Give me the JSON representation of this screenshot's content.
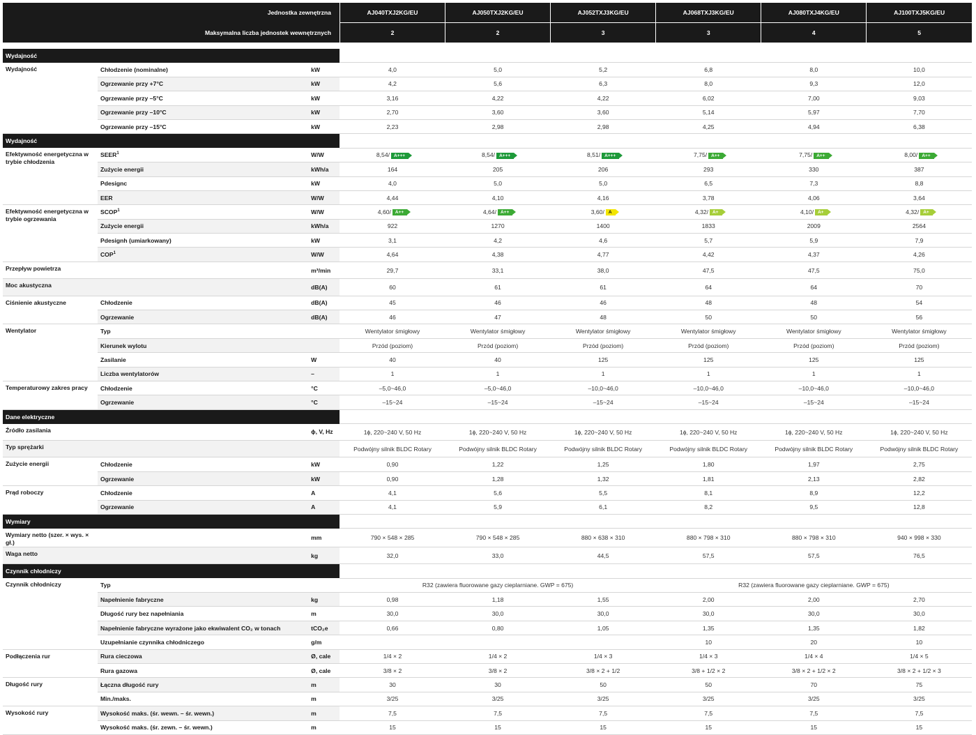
{
  "header": {
    "outdoor_label": "Jednostka zewnętrzna",
    "models": [
      "AJ040TXJ2KG/EU",
      "AJ050TXJ2KG/EU",
      "AJ052TXJ3KG/EU",
      "AJ068TXJ3KG/EU",
      "AJ080TXJ4KG/EU",
      "AJ100TXJ5KG/EU"
    ],
    "max_indoor_label": "Maksymalna liczba jednostek wewnętrznych",
    "max_indoor": [
      "2",
      "2",
      "3",
      "3",
      "4",
      "5"
    ]
  },
  "sections": [
    {
      "title": "Wydajność",
      "rows": [
        {
          "group": "Wydajność",
          "param": "Chłodzenie (nominalne)",
          "unit": "kW",
          "values": [
            "4,0",
            "5,0",
            "5,2",
            "6,8",
            "8,0",
            "10,0"
          ]
        },
        {
          "param": "Ogrzewanie przy +7°C",
          "unit": "kW",
          "values": [
            "4,2",
            "5,6",
            "6,3",
            "8,0",
            "9,3",
            "12,0"
          ]
        },
        {
          "param": "Ogrzewanie przy –5°C",
          "unit": "kW",
          "values": [
            "3,16",
            "4,22",
            "4,22",
            "6,02",
            "7,00",
            "9,03"
          ]
        },
        {
          "param": "Ogrzewanie przy –10°C",
          "unit": "kW",
          "values": [
            "2,70",
            "3,60",
            "3,60",
            "5,14",
            "5,97",
            "7,70"
          ]
        },
        {
          "param": "Ogrzewanie przy –15°C",
          "unit": "kW",
          "values": [
            "2,23",
            "2,98",
            "2,98",
            "4,25",
            "4,94",
            "6,38"
          ]
        }
      ]
    },
    {
      "title": "Wydajność",
      "rows": [
        {
          "group": "Efektywność energetyczna w trybie chłodzenia",
          "param": "SEER",
          "sup": "1",
          "unit": "W/W",
          "values": [
            "8,54/",
            "8,54/",
            "8,51/",
            "7,75/",
            "7,75/",
            "8,00/"
          ],
          "badges": [
            [
              "A+++",
              "dg"
            ],
            [
              "A+++",
              "dg"
            ],
            [
              "A+++",
              "dg"
            ],
            [
              "A++",
              "g"
            ],
            [
              "A++",
              "g"
            ],
            [
              "A++",
              "g"
            ]
          ]
        },
        {
          "param": "Zużycie energii",
          "unit": "kWh/a",
          "values": [
            "164",
            "205",
            "206",
            "293",
            "330",
            "387"
          ]
        },
        {
          "param": "Pdesignc",
          "unit": "kW",
          "values": [
            "4,0",
            "5,0",
            "5,0",
            "6,5",
            "7,3",
            "8,8"
          ]
        },
        {
          "param": "EER",
          "unit": "W/W",
          "values": [
            "4,44",
            "4,10",
            "4,16",
            "3,78",
            "4,06",
            "3,64"
          ]
        },
        {
          "group": "Efektywność energetyczna w trybie ogrzewania",
          "param": "SCOP",
          "sup": "1",
          "unit": "W/W",
          "values": [
            "4,60/",
            "4,64/",
            "3,60/",
            "4,32/",
            "4,10/",
            "4,32/"
          ],
          "badges": [
            [
              "A++",
              "g"
            ],
            [
              "A++",
              "g"
            ],
            [
              "A",
              "y"
            ],
            [
              "A+",
              "lg"
            ],
            [
              "A+",
              "lg"
            ],
            [
              "A+",
              "lg"
            ]
          ]
        },
        {
          "param": "Zużycie energii",
          "unit": "kWh/a",
          "values": [
            "922",
            "1270",
            "1400",
            "1833",
            "2009",
            "2564"
          ]
        },
        {
          "param": "Pdesignh (umiarkowany)",
          "unit": "kW",
          "values": [
            "3,1",
            "4,2",
            "4,6",
            "5,7",
            "5,9",
            "7,9"
          ]
        },
        {
          "param": "COP",
          "sup": "1",
          "unit": "W/W",
          "values": [
            "4,64",
            "4,38",
            "4,77",
            "4,42",
            "4,37",
            "4,26"
          ]
        },
        {
          "group": "Przepływ powietrza",
          "param": "",
          "unit": "m³/min",
          "values": [
            "29,7",
            "33,1",
            "38,0",
            "47,5",
            "47,5",
            "75,0"
          ]
        },
        {
          "group": "Moc akustyczna",
          "param": "",
          "unit": "dB(A)",
          "values": [
            "60",
            "61",
            "61",
            "64",
            "64",
            "70"
          ]
        },
        {
          "group": "Ciśnienie akustyczne",
          "param": "Chłodzenie",
          "unit": "dB(A)",
          "values": [
            "45",
            "46",
            "46",
            "48",
            "48",
            "54"
          ]
        },
        {
          "param": "Ogrzewanie",
          "unit": "dB(A)",
          "values": [
            "46",
            "47",
            "48",
            "50",
            "50",
            "56"
          ]
        },
        {
          "group": "Wentylator",
          "param": "Typ",
          "unit": "",
          "values": [
            "Wentylator śmigłowy",
            "Wentylator śmigłowy",
            "Wentylator śmigłowy",
            "Wentylator śmigłowy",
            "Wentylator śmigłowy",
            "Wentylator śmigłowy"
          ]
        },
        {
          "param": "Kierunek wylotu",
          "unit": "",
          "values": [
            "Przód (poziom)",
            "Przód (poziom)",
            "Przód (poziom)",
            "Przód (poziom)",
            "Przód (poziom)",
            "Przód (poziom)"
          ]
        },
        {
          "param": "Zasilanie",
          "unit": "W",
          "values": [
            "40",
            "40",
            "125",
            "125",
            "125",
            "125"
          ]
        },
        {
          "param": "Liczba wentylatorów",
          "unit": "–",
          "values": [
            "1",
            "1",
            "1",
            "1",
            "1",
            "1"
          ]
        },
        {
          "group": "Temperaturowy zakres pracy",
          "param": "Chłodzenie",
          "unit": "°C",
          "values": [
            "–5,0~46,0",
            "–5,0~46,0",
            "–10,0~46,0",
            "–10,0~46,0",
            "–10,0~46,0",
            "–10,0~46,0"
          ]
        },
        {
          "param": "Ogrzewanie",
          "unit": "°C",
          "values": [
            "–15~24",
            "–15~24",
            "–15~24",
            "–15~24",
            "–15~24",
            "–15~24"
          ]
        }
      ]
    },
    {
      "title": "Dane elektryczne",
      "rows": [
        {
          "group": "Źródło zasilania",
          "param": "",
          "unit": "ɸ, V, Hz",
          "values": [
            "1ɸ, 220~240 V, 50 Hz",
            "1ɸ, 220~240 V, 50 Hz",
            "1ɸ, 220~240 V, 50 Hz",
            "1ɸ, 220~240 V, 50 Hz",
            "1ɸ, 220~240 V, 50 Hz",
            "1ɸ, 220~240 V, 50 Hz"
          ]
        },
        {
          "group": "Typ sprężarki",
          "param": "",
          "unit": "",
          "values": [
            "Podwójny silnik BLDC Rotary",
            "Podwójny silnik BLDC Rotary",
            "Podwójny silnik BLDC Rotary",
            "Podwójny silnik BLDC Rotary",
            "Podwójny silnik BLDC Rotary",
            "Podwójny silnik BLDC Rotary"
          ]
        },
        {
          "group": "Zużycie energii",
          "param": "Chłodzenie",
          "unit": "kW",
          "values": [
            "0,90",
            "1,22",
            "1,25",
            "1,80",
            "1,97",
            "2,75"
          ]
        },
        {
          "param": "Ogrzewanie",
          "unit": "kW",
          "values": [
            "0,90",
            "1,28",
            "1,32",
            "1,81",
            "2,13",
            "2,82"
          ]
        },
        {
          "group": "Prąd roboczy",
          "param": "Chłodzenie",
          "unit": "A",
          "values": [
            "4,1",
            "5,6",
            "5,5",
            "8,1",
            "8,9",
            "12,2"
          ]
        },
        {
          "param": "Ogrzewanie",
          "unit": "A",
          "values": [
            "4,1",
            "5,9",
            "6,1",
            "8,2",
            "9,5",
            "12,8"
          ]
        }
      ]
    },
    {
      "title": "Wymiary",
      "rows": [
        {
          "group": "Wymiary netto (szer. × wys. × gł.)",
          "param": "",
          "unit": "mm",
          "values": [
            "790 × 548 × 285",
            "790 × 548 × 285",
            "880 × 638 × 310",
            "880 × 798 × 310",
            "880 × 798 × 310",
            "940 × 998 × 330"
          ]
        },
        {
          "group": "Waga netto",
          "param": "",
          "unit": "kg",
          "values": [
            "32,0",
            "33,0",
            "44,5",
            "57,5",
            "57,5",
            "76,5"
          ]
        }
      ]
    },
    {
      "title": "Czynnik chłodniczy",
      "rows": [
        {
          "group": "Czynnik chłodniczy",
          "param": "Typ",
          "unit": "",
          "values": [],
          "merged": [
            "R32 (zawiera fluorowane gazy cieplarniane. GWP = 675)",
            "R32 (zawiera fluorowane gazy cieplarniane. GWP = 675)"
          ]
        },
        {
          "param": "Napełnienie fabryczne",
          "unit": "kg",
          "values": [
            "0,98",
            "1,18",
            "1,55",
            "2,00",
            "2,00",
            "2,70"
          ]
        },
        {
          "param": "Długość rury bez napełniania",
          "unit": "m",
          "values": [
            "30,0",
            "30,0",
            "30,0",
            "30,0",
            "30,0",
            "30,0"
          ]
        },
        {
          "param": "Napełnienie fabryczne wyrażone jako ekwiwalent CO₂ w tonach",
          "unit": "tCO₂e",
          "values": [
            "0,66",
            "0,80",
            "1,05",
            "1,35",
            "1,35",
            "1,82"
          ]
        },
        {
          "param": "Uzupełnianie czynnika chłodniczego",
          "unit": "g/m",
          "values": [
            "",
            "",
            "",
            "10",
            "20",
            "10"
          ]
        },
        {
          "group": "Podłączenia rur",
          "param": "Rura cieczowa",
          "unit": "Ø, cale",
          "values": [
            "1/4 × 2",
            "1/4 × 2",
            "1/4 × 3",
            "1/4 × 3",
            "1/4 × 4",
            "1/4 × 5"
          ]
        },
        {
          "param": "Rura gazowa",
          "unit": "Ø, cale",
          "values": [
            "3/8 × 2",
            "3/8 × 2",
            "3/8 × 2 + 1/2",
            "3/8 + 1/2 × 2",
            "3/8 × 2 + 1/2 × 2",
            "3/8 × 2 + 1/2 × 3"
          ]
        },
        {
          "group": "Długość rury",
          "param": "Łączna długość rury",
          "unit": "m",
          "values": [
            "30",
            "30",
            "50",
            "50",
            "70",
            "75"
          ]
        },
        {
          "param": "Min./maks.",
          "unit": "m",
          "values": [
            "3/25",
            "3/25",
            "3/25",
            "3/25",
            "3/25",
            "3/25"
          ]
        },
        {
          "group": "Wysokość rury",
          "param": "Wysokość maks. (śr. wewn. – śr. wewn.)",
          "unit": "m",
          "values": [
            "7,5",
            "7,5",
            "7,5",
            "7,5",
            "7,5",
            "7,5"
          ]
        },
        {
          "param": "Wysokość maks. (śr. zewn. – śr. wewn.)",
          "unit": "m",
          "values": [
            "15",
            "15",
            "15",
            "15",
            "15",
            "15"
          ]
        }
      ]
    }
  ]
}
